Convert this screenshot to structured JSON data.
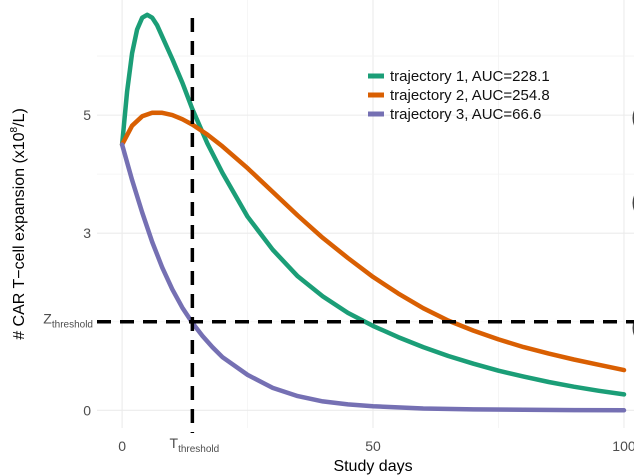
{
  "chart_data": {
    "type": "line",
    "title": "",
    "xlabel": "Study days",
    "ylabel": "# CAR T−cell expansion (x10",
    "ylabel_exponent": "8",
    "ylabel_suffix": "/L)",
    "xlim": [
      -5,
      102
    ],
    "ylim": [
      -0.3,
      6.95
    ],
    "x_ticks": [
      0,
      50,
      100
    ],
    "x_tick_labels": [
      "0",
      "50",
      "100"
    ],
    "y_ticks": [
      0,
      3,
      5
    ],
    "y_tick_labels": [
      "0",
      "3",
      "5"
    ],
    "grid": true,
    "legend_position": "top-right",
    "threshold_x": {
      "value": 14,
      "label_main": "T",
      "label_sub": "threshold"
    },
    "threshold_y": {
      "value": 1.5,
      "label_main": "Z",
      "label_sub": "threshold"
    },
    "series": [
      {
        "name": "trajectory 1, AUC=228.1",
        "color": "#1b9e77",
        "x": [
          0,
          1,
          2,
          3,
          4,
          5,
          6,
          7,
          8,
          10,
          12,
          14,
          17,
          20,
          25,
          30,
          35,
          40,
          45,
          50,
          55,
          60,
          65,
          70,
          75,
          80,
          85,
          90,
          95,
          100
        ],
        "y": [
          4.5,
          5.4,
          6.05,
          6.45,
          6.65,
          6.7,
          6.65,
          6.52,
          6.33,
          5.95,
          5.55,
          5.1,
          4.52,
          4.02,
          3.28,
          2.72,
          2.27,
          1.93,
          1.65,
          1.43,
          1.24,
          1.07,
          0.92,
          0.79,
          0.67,
          0.57,
          0.48,
          0.4,
          0.33,
          0.27
        ]
      },
      {
        "name": "trajectory 2, AUC=254.8",
        "color": "#d95f02",
        "x": [
          0,
          2,
          4,
          6,
          8,
          10,
          12,
          14,
          17,
          20,
          25,
          30,
          35,
          40,
          45,
          50,
          55,
          60,
          65,
          70,
          75,
          80,
          85,
          90,
          95,
          100
        ],
        "y": [
          4.5,
          4.82,
          4.98,
          5.04,
          5.04,
          5.0,
          4.93,
          4.84,
          4.67,
          4.47,
          4.1,
          3.7,
          3.3,
          2.92,
          2.58,
          2.26,
          1.98,
          1.73,
          1.52,
          1.35,
          1.2,
          1.07,
          0.96,
          0.86,
          0.77,
          0.68
        ]
      },
      {
        "name": "trajectory 3, AUC=66.6",
        "color": "#7570b3",
        "x": [
          0,
          2,
          4,
          6,
          8,
          10,
          12,
          14,
          16,
          18,
          20,
          25,
          30,
          35,
          40,
          45,
          50,
          60,
          70,
          80,
          90,
          100
        ],
        "y": [
          4.5,
          3.9,
          3.35,
          2.85,
          2.42,
          2.05,
          1.74,
          1.48,
          1.26,
          1.07,
          0.9,
          0.6,
          0.38,
          0.24,
          0.15,
          0.1,
          0.07,
          0.03,
          0.015,
          0.008,
          0.004,
          0.0
        ]
      }
    ]
  }
}
